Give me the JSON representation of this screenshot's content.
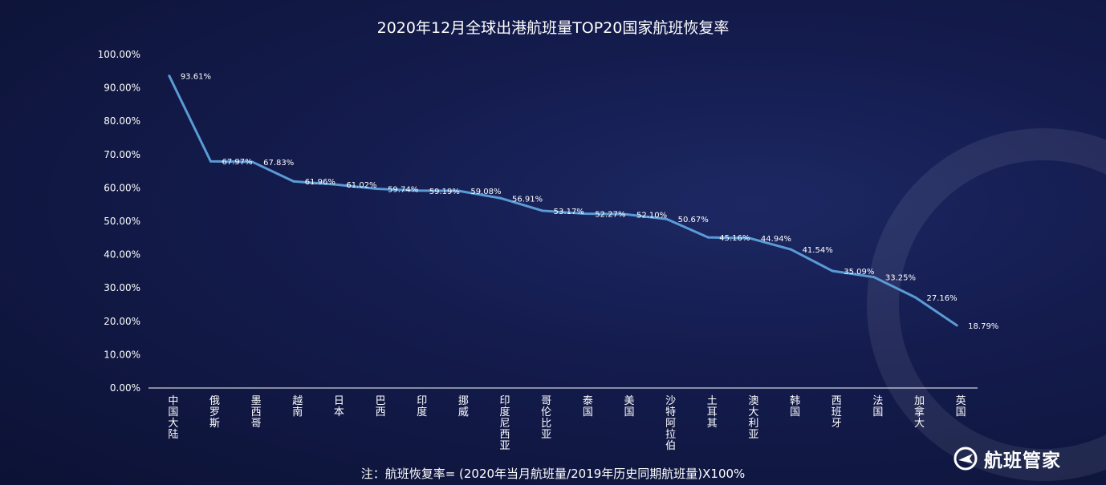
{
  "chart_data": {
    "type": "line",
    "title": "2020年12月全球出港航班量TOP20国家航班恢复率",
    "categories": [
      "中国大陆",
      "俄罗斯",
      "墨西哥",
      "越南",
      "日本",
      "巴西",
      "印度",
      "挪威",
      "印度尼西亚",
      "哥伦比亚",
      "泰国",
      "美国",
      "沙特阿拉伯",
      "土耳其",
      "澳大利亚",
      "韩国",
      "西班牙",
      "法国",
      "加拿大",
      "英国"
    ],
    "values": [
      93.61,
      67.97,
      67.83,
      61.96,
      61.02,
      59.74,
      59.19,
      59.08,
      56.91,
      53.17,
      52.27,
      52.1,
      50.67,
      45.16,
      44.94,
      41.54,
      35.09,
      33.25,
      27.16,
      18.79
    ],
    "value_labels": [
      "93.61%",
      "67.97%",
      "67.83%",
      "61.96%",
      "61.02%",
      "59.74%",
      "59.19%",
      "59.08%",
      "56.91%",
      "53.17%",
      "52.27%",
      "52.10%",
      "50.67%",
      "45.16%",
      "44.94%",
      "41.54%",
      "35.09%",
      "33.25%",
      "27.16%",
      "18.79%"
    ],
    "yticks": [
      "0.00%",
      "10.00%",
      "20.00%",
      "30.00%",
      "40.00%",
      "50.00%",
      "60.00%",
      "70.00%",
      "80.00%",
      "90.00%",
      "100.00%"
    ],
    "ylim": [
      0,
      100
    ],
    "line_color": "#5b9bd5",
    "grid": false,
    "legend": "none"
  },
  "footnote": "注：航班恢复率= (2020年当月航班量/2019年历史同期航班量)X100%",
  "brand": {
    "name": "航班管家",
    "icon": "airplane-logo-icon"
  }
}
